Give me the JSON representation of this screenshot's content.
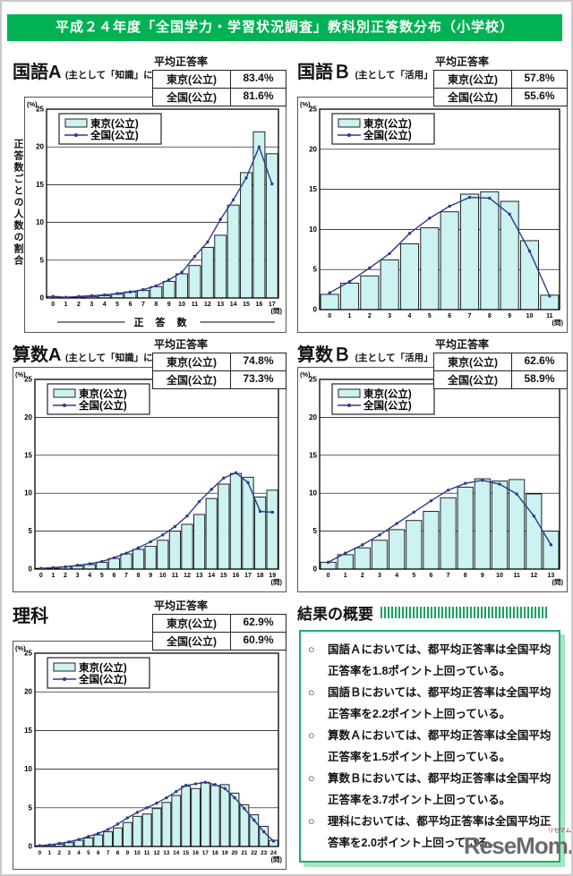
{
  "page": {
    "title": "平成２４年度「全国学力・学習状況調査」教科別正答数分布（小学校）"
  },
  "theme": {
    "banner_green": "#00b254",
    "bar_fill": "#ccf2f2",
    "line_color": "#2e3a8c",
    "summary_border_green": "#1fae68",
    "summary_shadow_green": "#a8e3c4"
  },
  "chart_data": [
    {
      "type": "bar+line",
      "title": "国語А",
      "subtitle": "(主として「知識」に関する問題)",
      "avg_label": "平均正答率",
      "avg_rows": [
        {
          "label": "東京(公立)",
          "value": "83.4%"
        },
        {
          "label": "全国(公立)",
          "value": "81.6%"
        }
      ],
      "legend": [
        "東京(公立)",
        "全国(公立)"
      ],
      "unit_y": "(%)",
      "unit_x": "(問)",
      "xlabel": "正 答 数",
      "ylabel": "正答数ごとの人数の割合",
      "ylim": [
        0,
        25
      ],
      "yticks": [
        0,
        5,
        10,
        15,
        20,
        25
      ],
      "x": [
        0,
        1,
        2,
        3,
        4,
        5,
        6,
        7,
        8,
        9,
        10,
        11,
        12,
        13,
        14,
        15,
        16,
        17
      ],
      "series": [
        {
          "name": "東京(公立)",
          "type": "bar",
          "values": [
            0.2,
            0.1,
            0.1,
            0.2,
            0.3,
            0.5,
            0.8,
            1.0,
            1.5,
            2.2,
            3.2,
            4.3,
            6.7,
            8.3,
            12.3,
            16.6,
            22.0,
            19.1
          ]
        },
        {
          "name": "全国(公立)",
          "type": "line",
          "values": [
            0.2,
            0.1,
            0.2,
            0.3,
            0.4,
            0.6,
            0.8,
            1.1,
            1.6,
            2.4,
            3.4,
            5.5,
            7.4,
            10.4,
            13.0,
            15.9,
            20.0,
            15.1
          ]
        }
      ]
    },
    {
      "type": "bar+line",
      "title": "国語Ｂ",
      "subtitle": "(主として「活用」に関する問題)",
      "avg_label": "平均正答率",
      "avg_rows": [
        {
          "label": "東京(公立)",
          "value": "57.8%"
        },
        {
          "label": "全国(公立)",
          "value": "55.6%"
        }
      ],
      "legend": [
        "東京(公立)",
        "全国(公立)"
      ],
      "unit_y": "(%)",
      "unit_x": "(問)",
      "ylim": [
        0,
        25
      ],
      "yticks": [
        0,
        5,
        10,
        15,
        20,
        25
      ],
      "x": [
        0,
        1,
        2,
        3,
        4,
        5,
        6,
        7,
        8,
        9,
        10,
        11
      ],
      "series": [
        {
          "name": "東京(公立)",
          "type": "bar",
          "values": [
            1.9,
            3.3,
            4.2,
            6.2,
            8.2,
            10.2,
            12.2,
            14.4,
            14.7,
            13.5,
            8.6,
            1.8
          ]
        },
        {
          "name": "全国(公立)",
          "type": "line",
          "values": [
            2.1,
            3.5,
            5.2,
            7.0,
            9.5,
            11.4,
            12.9,
            14.0,
            13.9,
            11.9,
            7.3,
            1.7
          ]
        }
      ]
    },
    {
      "type": "bar+line",
      "title": "算数А",
      "subtitle": "(主として「知識」に関する問題)",
      "avg_label": "平均正答率",
      "avg_rows": [
        {
          "label": "東京(公立)",
          "value": "74.8%"
        },
        {
          "label": "全国(公立)",
          "value": "73.3%"
        }
      ],
      "legend": [
        "東京(公立)",
        "全国(公立)"
      ],
      "unit_y": "(%)",
      "unit_x": "(問)",
      "ylim": [
        0,
        25
      ],
      "yticks": [
        0,
        5,
        10,
        15,
        20,
        25
      ],
      "x": [
        0,
        1,
        2,
        3,
        4,
        5,
        6,
        7,
        8,
        9,
        10,
        11,
        12,
        13,
        14,
        15,
        16,
        17,
        18,
        19
      ],
      "series": [
        {
          "name": "東京(公立)",
          "type": "bar",
          "values": [
            0.1,
            0.1,
            0.3,
            0.4,
            0.6,
            0.9,
            1.4,
            2.0,
            2.6,
            3.0,
            3.8,
            5.0,
            5.9,
            7.2,
            9.3,
            11.2,
            12.6,
            12.1,
            9.5,
            10.4
          ]
        },
        {
          "name": "全国(公立)",
          "type": "line",
          "values": [
            0.1,
            0.2,
            0.3,
            0.5,
            0.7,
            1.0,
            1.5,
            2.1,
            2.8,
            3.6,
            4.5,
            5.6,
            7.0,
            8.9,
            10.5,
            12.0,
            12.7,
            11.4,
            7.6,
            7.5
          ]
        }
      ]
    },
    {
      "type": "bar+line",
      "title": "算数Ｂ",
      "subtitle": "(主として「活用」に関する問題)",
      "avg_label": "平均正答率",
      "avg_rows": [
        {
          "label": "東京(公立)",
          "value": "62.6%"
        },
        {
          "label": "全国(公立)",
          "value": "58.9%"
        }
      ],
      "legend": [
        "東京(公立)",
        "全国(公立)"
      ],
      "unit_y": "(%)",
      "unit_x": "(問)",
      "ylim": [
        0,
        25
      ],
      "yticks": [
        0,
        5,
        10,
        15,
        20,
        25
      ],
      "x": [
        0,
        1,
        2,
        3,
        4,
        5,
        6,
        7,
        8,
        9,
        10,
        11,
        12,
        13
      ],
      "series": [
        {
          "name": "東京(公立)",
          "type": "bar",
          "values": [
            0.9,
            1.9,
            2.8,
            3.8,
            5.2,
            6.4,
            7.6,
            9.4,
            10.8,
            11.9,
            11.6,
            11.8,
            9.9,
            5.0
          ]
        },
        {
          "name": "全国(公立)",
          "type": "line",
          "values": [
            0.9,
            2.1,
            3.2,
            4.5,
            6.0,
            7.5,
            9.0,
            10.4,
            11.3,
            11.7,
            11.2,
            9.9,
            7.0,
            3.2
          ]
        }
      ]
    },
    {
      "type": "bar+line",
      "title": "理科",
      "subtitle": "",
      "avg_label": "平均正答率",
      "avg_rows": [
        {
          "label": "東京(公立)",
          "value": "62.9%"
        },
        {
          "label": "全国(公立)",
          "value": "60.9%"
        }
      ],
      "legend": [
        "東京(公立)",
        "全国(公立)"
      ],
      "unit_y": "(%)",
      "unit_x": "(問)",
      "ylim": [
        0,
        25
      ],
      "yticks": [
        0,
        5,
        10,
        15,
        20,
        25
      ],
      "x": [
        0,
        1,
        2,
        3,
        4,
        5,
        6,
        7,
        8,
        9,
        10,
        11,
        12,
        13,
        14,
        15,
        16,
        17,
        18,
        19,
        20,
        21,
        22,
        23,
        24
      ],
      "series": [
        {
          "name": "東京(公立)",
          "type": "bar",
          "values": [
            0.1,
            0.2,
            0.3,
            0.5,
            0.8,
            1.1,
            1.5,
            1.9,
            2.4,
            3.1,
            3.9,
            4.2,
            4.9,
            5.7,
            6.6,
            7.8,
            7.5,
            8.3,
            7.9,
            8.0,
            6.9,
            5.4,
            4.1,
            2.6,
            0.8
          ]
        },
        {
          "name": "全国(公立)",
          "type": "line",
          "values": [
            0.1,
            0.2,
            0.4,
            0.6,
            0.9,
            1.3,
            1.7,
            2.2,
            2.9,
            3.7,
            4.4,
            5.0,
            5.6,
            6.3,
            7.1,
            7.9,
            8.1,
            8.3,
            8.0,
            7.5,
            6.3,
            4.9,
            3.4,
            1.9,
            0.7
          ]
        }
      ]
    }
  ],
  "summary": {
    "heading": "結果の概要",
    "marker": "○",
    "items": [
      {
        "subject": "国語Ａ",
        "mid": "においては、都平均正答率は全国平均正答率を",
        "points": "1.8",
        "post": "ポイント上回っている。"
      },
      {
        "subject": "国語Ｂ",
        "mid": "においては、都平均正答率は全国平均正答率を",
        "points": "2.2",
        "post": "ポイント上回っている。"
      },
      {
        "subject": "算数Ａ",
        "mid": "においては、都平均正答率は全国平均正答率を",
        "points": "1.5",
        "post": "ポイント上回っている。"
      },
      {
        "subject": "算数Ｂ",
        "mid": "においては、都平均正答率は全国平均正答率を",
        "points": "3.7",
        "post": "ポイント上回っている。"
      },
      {
        "subject": "理科",
        "mid": "においては、都平均正答率は全国平均正答率を",
        "points": "2.0",
        "post": "ポイント上回っている。"
      }
    ]
  },
  "watermark": {
    "text": "ReseMom.",
    "ruby": "リセマム"
  }
}
